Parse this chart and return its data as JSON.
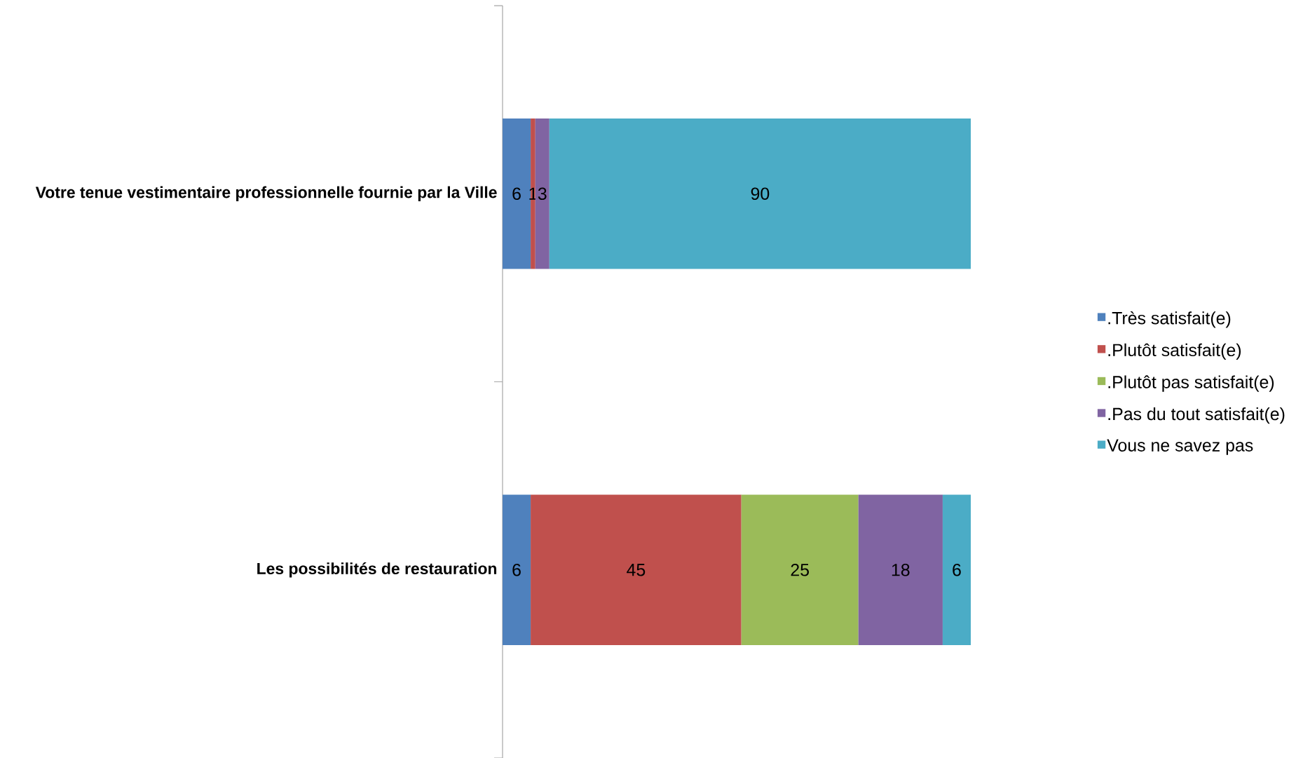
{
  "chart_data": {
    "type": "bar",
    "orientation": "horizontal",
    "stacked": true,
    "data_labels": true,
    "legend": "right",
    "categories": [
      "Votre tenue vestimentaire professionnelle fournie par la Ville",
      "Les possibilités de restauration"
    ],
    "series": [
      {
        "name": ".Très satisfait(e)",
        "color": "#4f81bd",
        "values": [
          6,
          6
        ]
      },
      {
        "name": ".Plutôt satisfait(e)",
        "color": "#c0504d",
        "values": [
          1,
          45
        ]
      },
      {
        "name": ".Plutôt pas satisfait(e)",
        "color": "#9bbb59",
        "values": [
          null,
          25
        ]
      },
      {
        "name": ".Pas du tout satisfait(e)",
        "color": "#8064a2",
        "values": [
          3,
          18
        ]
      },
      {
        "name": "Vous ne savez pas",
        "color": "#4bacc6",
        "values": [
          90,
          6
        ]
      }
    ]
  }
}
